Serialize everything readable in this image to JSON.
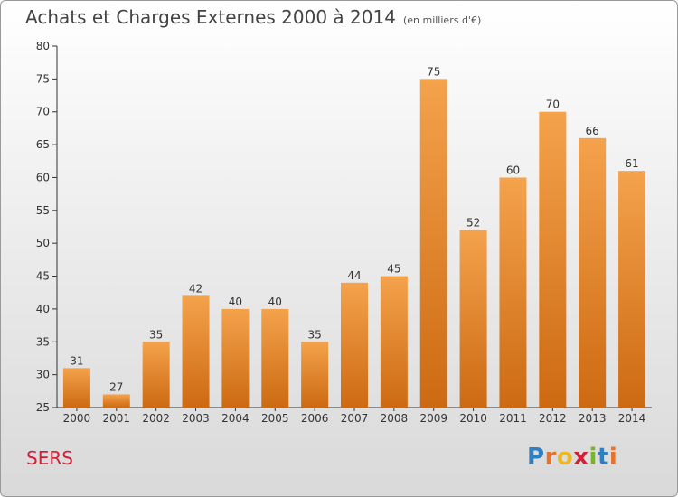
{
  "title": "Achats et Charges Externes 2000 à 2014",
  "subtitle": "(en milliers d'€)",
  "commune": "SERS",
  "logo": {
    "letters": [
      {
        "char": "P",
        "color": "#2f7fc3"
      },
      {
        "char": "r",
        "color": "#e8722a"
      },
      {
        "char": "o",
        "color": "#f0b81e"
      },
      {
        "char": "x",
        "color": "#d0203a"
      },
      {
        "char": "i",
        "color": "#7ab42c"
      },
      {
        "char": "t",
        "color": "#2f7fc3"
      },
      {
        "char": "i",
        "color": "#e8722a"
      }
    ]
  },
  "colors": {
    "bar_light": "#f4a24c",
    "bar_dark": "#cc6a12",
    "axis": "#333333",
    "grid": "#cfcfcf"
  },
  "chart_data": {
    "type": "bar",
    "categories": [
      "2000",
      "2001",
      "2002",
      "2003",
      "2004",
      "2005",
      "2006",
      "2007",
      "2008",
      "2009",
      "2010",
      "2011",
      "2012",
      "2013",
      "2014"
    ],
    "values": [
      31,
      27,
      35,
      42,
      40,
      40,
      35,
      44,
      45,
      75,
      52,
      60,
      70,
      66,
      61
    ],
    "ylim": [
      25,
      80
    ],
    "yticks": [
      25,
      30,
      35,
      40,
      45,
      50,
      55,
      60,
      65,
      70,
      75,
      80
    ],
    "grid": false,
    "legend": "none"
  }
}
